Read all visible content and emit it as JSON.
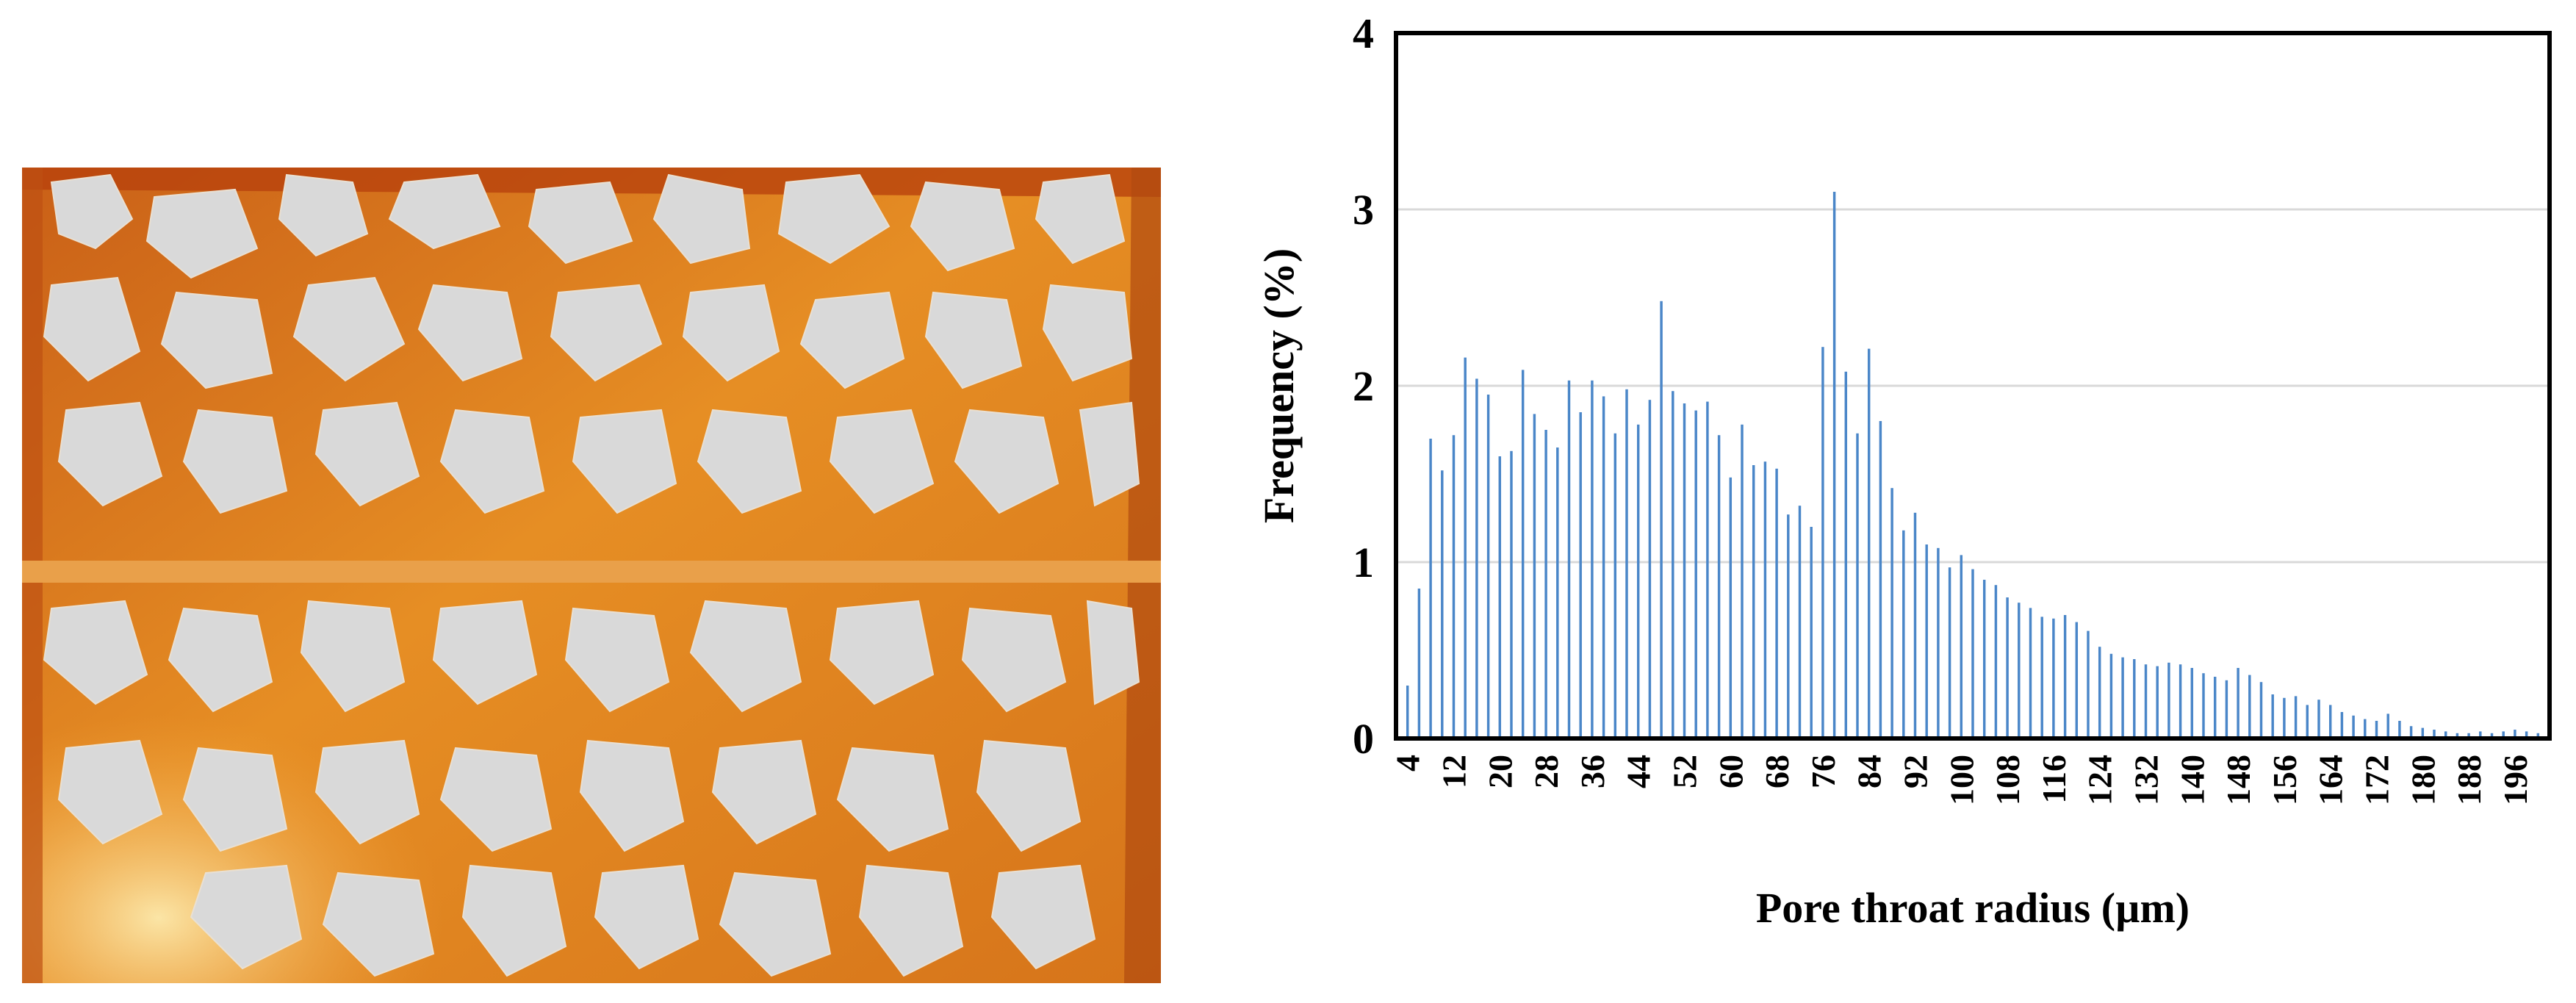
{
  "image": {
    "left_panel": "pore-network-micrograph",
    "colors": {
      "pore_fluid": "#e58a1f",
      "pore_fluid_light": "#f7c46a",
      "pore_fluid_dark": "#b04a10",
      "grain": "#d9d9d9",
      "bar": "#4a86c8",
      "grid": "#d9d9d9",
      "frame": "#000000"
    }
  },
  "chart_data": {
    "type": "bar",
    "title": "",
    "xlabel": "Pore throat radius (µm)",
    "ylabel": "Frequency (%)",
    "ylim": [
      0,
      4
    ],
    "yticks": [
      0,
      1,
      2,
      3,
      4
    ],
    "ytick_labels": [
      "0",
      "1",
      "2",
      "3",
      "4"
    ],
    "grid": "horizontal",
    "x": [
      4,
      6,
      8,
      10,
      12,
      14,
      16,
      18,
      20,
      22,
      24,
      26,
      28,
      30,
      32,
      34,
      36,
      38,
      40,
      42,
      44,
      46,
      48,
      50,
      52,
      54,
      56,
      58,
      60,
      62,
      64,
      66,
      68,
      70,
      72,
      74,
      76,
      78,
      80,
      82,
      84,
      86,
      88,
      90,
      92,
      94,
      96,
      98,
      100,
      102,
      104,
      106,
      108,
      110,
      112,
      114,
      116,
      118,
      120,
      122,
      124,
      126,
      128,
      130,
      132,
      134,
      136,
      138,
      140,
      142,
      144,
      146,
      148,
      150,
      152,
      154,
      156,
      158,
      160,
      162,
      164,
      166,
      168,
      170,
      172,
      174,
      176,
      178,
      180,
      182,
      184,
      186,
      188,
      190,
      192,
      194,
      196,
      198,
      200
    ],
    "xtick_labels": [
      "4",
      "12",
      "20",
      "28",
      "36",
      "44",
      "52",
      "60",
      "68",
      "76",
      "84",
      "92",
      "100",
      "108",
      "116",
      "124",
      "132",
      "140",
      "148",
      "156",
      "164",
      "172",
      "180",
      "188",
      "196"
    ],
    "values": [
      0.3,
      0.85,
      1.7,
      1.52,
      1.72,
      2.16,
      2.04,
      1.95,
      1.6,
      1.63,
      2.09,
      1.84,
      1.75,
      1.65,
      2.03,
      1.85,
      2.03,
      1.94,
      1.73,
      1.98,
      1.78,
      1.92,
      2.48,
      1.97,
      1.9,
      1.86,
      1.91,
      1.72,
      1.48,
      1.78,
      1.55,
      1.57,
      1.53,
      1.27,
      1.32,
      1.2,
      2.22,
      3.1,
      2.08,
      1.73,
      2.21,
      1.8,
      1.42,
      1.18,
      1.28,
      1.1,
      1.08,
      0.97,
      1.04,
      0.96,
      0.9,
      0.87,
      0.8,
      0.77,
      0.74,
      0.69,
      0.68,
      0.7,
      0.66,
      0.61,
      0.52,
      0.48,
      0.46,
      0.45,
      0.42,
      0.41,
      0.43,
      0.42,
      0.4,
      0.37,
      0.35,
      0.33,
      0.4,
      0.36,
      0.32,
      0.25,
      0.23,
      0.24,
      0.19,
      0.22,
      0.19,
      0.15,
      0.13,
      0.11,
      0.1,
      0.14,
      0.1,
      0.07,
      0.06,
      0.05,
      0.04,
      0.03,
      0.03,
      0.04,
      0.03,
      0.04,
      0.05,
      0.04,
      0.03
    ]
  }
}
